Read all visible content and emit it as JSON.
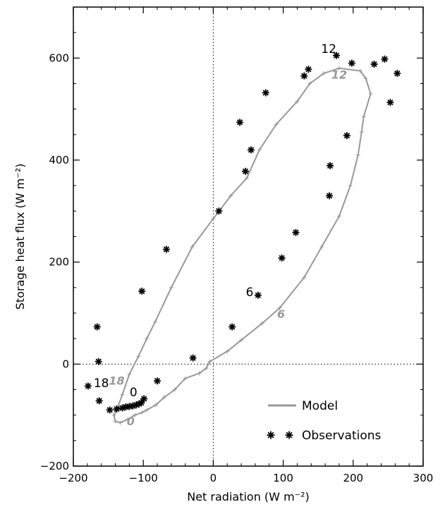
{
  "chart_data": {
    "type": "scatter",
    "title": "",
    "xlabel": "Net radiation (W m⁻²)",
    "ylabel": "Storage heat flux (W m⁻²)",
    "xlim": [
      -200,
      300
    ],
    "ylim": [
      -200,
      700
    ],
    "xticks": [
      -200,
      -100,
      0,
      100,
      200,
      300
    ],
    "yticks": [
      -200,
      0,
      200,
      400,
      600
    ],
    "xtick_labels": [
      "−200",
      "−100",
      "0",
      "100",
      "200",
      "300"
    ],
    "ytick_labels": [
      "−200",
      "0",
      "200",
      "400",
      "600"
    ],
    "reference_lines": {
      "x": 0,
      "y": 0,
      "style": "dotted"
    },
    "legend": {
      "position": "bottom-right",
      "entries": [
        "Model",
        "Observations"
      ]
    },
    "series": [
      {
        "name": "Model",
        "kind": "line",
        "color": "#999999",
        "points": [
          [
            -5,
            5
          ],
          [
            -10,
            -8
          ],
          [
            -20,
            -18
          ],
          [
            -40,
            -28
          ],
          [
            -55,
            -50
          ],
          [
            -70,
            -65
          ],
          [
            -82,
            -80
          ],
          [
            -95,
            -90
          ],
          [
            -102,
            -95
          ],
          [
            -112,
            -100
          ],
          [
            -122,
            -108
          ],
          [
            -133,
            -115
          ],
          [
            -140,
            -112
          ],
          [
            -142,
            -100
          ],
          [
            -138,
            -90
          ],
          [
            -130,
            -60
          ],
          [
            -120,
            -20
          ],
          [
            -107,
            15
          ],
          [
            -95,
            50
          ],
          [
            -83,
            83
          ],
          [
            -60,
            150
          ],
          [
            -30,
            230
          ],
          [
            0,
            285
          ],
          [
            25,
            330
          ],
          [
            48,
            365
          ],
          [
            66,
            420
          ],
          [
            90,
            470
          ],
          [
            120,
            515
          ],
          [
            138,
            550
          ],
          [
            158,
            570
          ],
          [
            180,
            580
          ],
          [
            210,
            575
          ],
          [
            218,
            560
          ],
          [
            225,
            530
          ],
          [
            215,
            485
          ],
          [
            212,
            455
          ],
          [
            207,
            410
          ],
          [
            196,
            350
          ],
          [
            180,
            290
          ],
          [
            155,
            230
          ],
          [
            130,
            170
          ],
          [
            95,
            110
          ],
          [
            70,
            80
          ],
          [
            40,
            47
          ],
          [
            20,
            25
          ],
          [
            -5,
            5
          ]
        ],
        "hour_labels": [
          {
            "label": "0",
            "x": -118,
            "y": -120
          },
          {
            "label": "6",
            "x": 97,
            "y": 90
          },
          {
            "label": "12",
            "x": 180,
            "y": 560
          },
          {
            "label": "18",
            "x": -138,
            "y": -40
          }
        ]
      },
      {
        "name": "Observations",
        "kind": "scatter",
        "marker": "asterisk",
        "color": "#000000",
        "points": [
          [
            176,
            605
          ],
          [
            198,
            590
          ],
          [
            230,
            588
          ],
          [
            245,
            598
          ],
          [
            263,
            570
          ],
          [
            253,
            513
          ],
          [
            130,
            565
          ],
          [
            136,
            578
          ],
          [
            191,
            448
          ],
          [
            75,
            532
          ],
          [
            38,
            474
          ],
          [
            54,
            420
          ],
          [
            46,
            378
          ],
          [
            167,
            389
          ],
          [
            166,
            330
          ],
          [
            118,
            258
          ],
          [
            98,
            208
          ],
          [
            64,
            135
          ],
          [
            27,
            73
          ],
          [
            8,
            300
          ],
          [
            -67,
            225
          ],
          [
            -102,
            143
          ],
          [
            -166,
            73
          ],
          [
            -164,
            5
          ],
          [
            -29,
            12
          ],
          [
            -80,
            -33
          ],
          [
            -179,
            -43
          ],
          [
            -163,
            -72
          ],
          [
            -99,
            -68
          ],
          [
            -148,
            -90
          ],
          [
            -138,
            -88
          ],
          [
            -130,
            -86
          ],
          [
            -125,
            -84
          ],
          [
            -120,
            -83
          ],
          [
            -115,
            -82
          ],
          [
            -110,
            -80
          ],
          [
            -106,
            -78
          ],
          [
            -103,
            -76
          ]
        ],
        "hour_labels": [
          {
            "label": "12",
            "x": 165,
            "y": 610
          },
          {
            "label": "6",
            "x": 52,
            "y": 133
          },
          {
            "label": "18",
            "x": -160,
            "y": -45
          },
          {
            "label": "0",
            "x": -114,
            "y": -63
          }
        ]
      }
    ]
  }
}
